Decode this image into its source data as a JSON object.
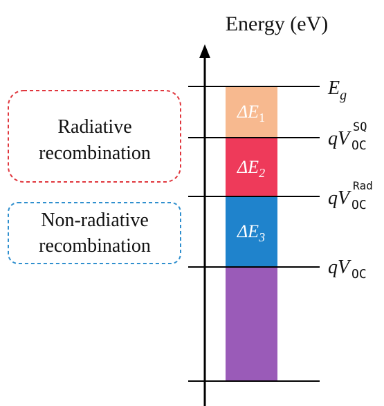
{
  "title": "Energy (eV)",
  "boxes": {
    "radiative": {
      "line1": "Radiative",
      "line2": "recombination",
      "color": "#e0363d"
    },
    "nonradiative": {
      "line1": "Non-radiative",
      "line2": "recombination",
      "color": "#2f8fce"
    }
  },
  "bars": {
    "de1": {
      "delta": "ΔE",
      "sub": "1",
      "color": "#f7b98f"
    },
    "de2": {
      "delta": "ΔE",
      "sub": "2",
      "color": "#ee3a5a"
    },
    "de3": {
      "delta": "ΔE",
      "sub": "3",
      "color": "#1f83cc"
    },
    "bottom": {
      "color": "#9a5bb8"
    }
  },
  "levels": {
    "eg": {
      "main": "E",
      "sub": "g"
    },
    "voc_sq": {
      "q": "q",
      "v": "V",
      "sub": "OC",
      "sup": "SQ"
    },
    "voc_rad": {
      "q": "q",
      "v": "V",
      "sub": "OC",
      "sup": "Rad"
    },
    "voc": {
      "q": "q",
      "v": "V",
      "sub": "OC"
    }
  }
}
